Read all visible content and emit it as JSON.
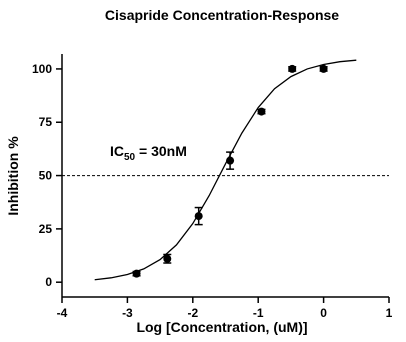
{
  "chart_data": {
    "type": "scatter",
    "title": "Cisapride Concentration-Response",
    "xlabel": "Log [Concentration, (uM)]",
    "ylabel": "Inhibition %",
    "xlim": [
      -4,
      1
    ],
    "xticks": [
      -4,
      -3,
      -2,
      -1,
      0,
      1
    ],
    "ylim": [
      -6,
      107
    ],
    "yticks": [
      0,
      25,
      50,
      75,
      100
    ],
    "color": "#000000",
    "x": [
      -2.86,
      -2.39,
      -1.91,
      -1.43,
      -0.95,
      -0.48,
      0
    ],
    "values": [
      4,
      11,
      31,
      57,
      80,
      100,
      100
    ],
    "errors": [
      1,
      2,
      4,
      4,
      1,
      1,
      1
    ],
    "curve": {
      "x": [
        -3.5,
        -3.25,
        -3.0,
        -2.75,
        -2.5,
        -2.25,
        -2.0,
        -1.75,
        -1.5,
        -1.25,
        -1.0,
        -0.75,
        -0.5,
        -0.25,
        0,
        0.25,
        0.5
      ],
      "values": [
        1.17,
        2.05,
        3.6,
        6.23,
        10.6,
        17.5,
        27.5,
        40.6,
        55.5,
        69.9,
        81.9,
        90.7,
        96.4,
        100.0,
        102.1,
        103.4,
        104.1
      ]
    },
    "reference_line": 50,
    "annotation": [
      "IC",
      "50",
      " = 30nM"
    ]
  }
}
